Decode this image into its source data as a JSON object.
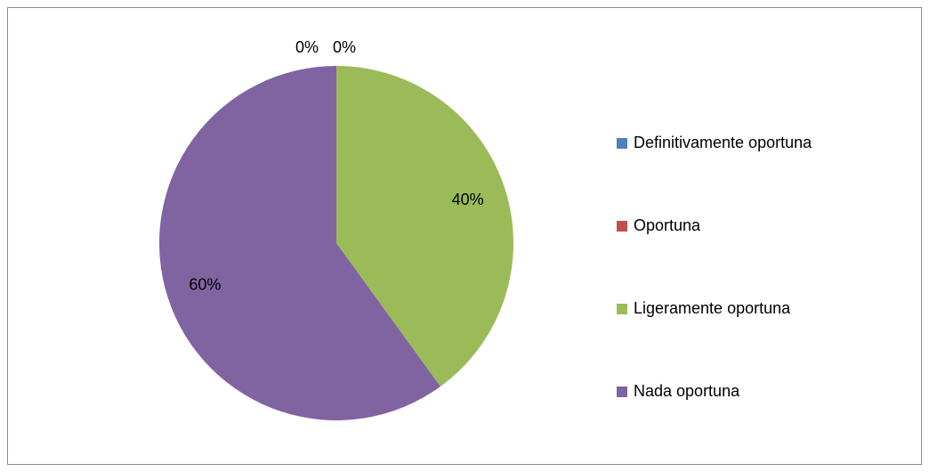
{
  "chart_data": {
    "type": "pie",
    "categories": [
      "Definitivamente oportuna",
      "Oportuna",
      "Ligeramente oportuna",
      "Nada oportuna"
    ],
    "values": [
      0,
      0,
      40,
      60
    ],
    "value_labels": [
      "0%",
      "0%",
      "40%",
      "60%"
    ],
    "colors": [
      "#4f81bd",
      "#c0504d",
      "#9bbb59",
      "#8064a2"
    ],
    "legend": "right"
  }
}
